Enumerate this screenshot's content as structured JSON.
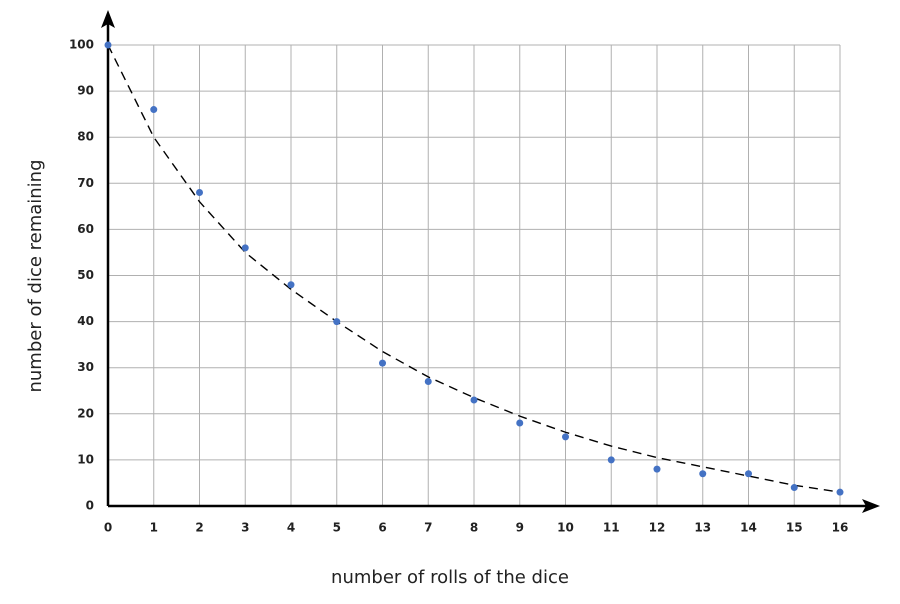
{
  "chart_data": {
    "type": "scatter",
    "x_label": "number of rolls of the dice",
    "y_label": "number of dice remaining",
    "x": [
      0,
      1,
      2,
      3,
      4,
      5,
      6,
      7,
      8,
      9,
      10,
      11,
      12,
      13,
      14,
      15,
      16
    ],
    "series": [
      {
        "color": "#4472c4",
        "values": [
          100,
          86,
          68,
          56,
          48,
          40,
          31,
          27,
          23,
          18,
          15,
          10,
          8,
          7,
          7,
          4,
          3
        ]
      }
    ],
    "trend": {
      "style": "dashed",
      "color": "#000000",
      "values": [
        100,
        80,
        66,
        55,
        47,
        40,
        33.5,
        28,
        23.5,
        19.5,
        16,
        13,
        10.5,
        8.5,
        6.5,
        4.5,
        3
      ]
    },
    "xlim": [
      0,
      16
    ],
    "ylim": [
      0,
      100
    ],
    "xticks": [
      0,
      1,
      2,
      3,
      4,
      5,
      6,
      7,
      8,
      9,
      10,
      11,
      12,
      13,
      14,
      15,
      16
    ],
    "yticks": [
      0,
      10,
      20,
      30,
      40,
      50,
      60,
      70,
      80,
      90,
      100
    ],
    "grid": true
  }
}
